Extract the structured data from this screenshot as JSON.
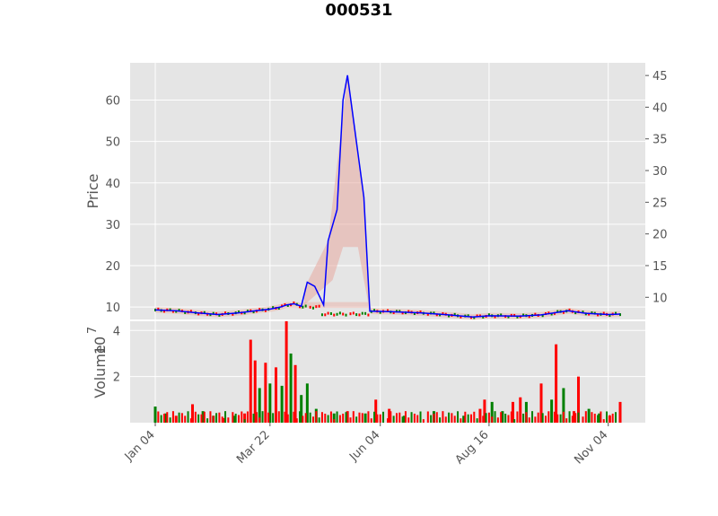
{
  "chart_data": {
    "type": "candlestick_volume",
    "title": "000531",
    "price_panel": {
      "ylabel": "Price",
      "ylim": [
        7,
        69
      ],
      "yticks": [
        10,
        20,
        30,
        40,
        50,
        60
      ],
      "secondary_ylim": [
        6.5,
        47
      ],
      "secondary_yticks": [
        10,
        15,
        20,
        25,
        30,
        35,
        40,
        45
      ],
      "grid": true
    },
    "volume_panel": {
      "ylabel": "Volume",
      "exponent_label": "10",
      "exponent_power": "7",
      "ylim": [
        0,
        4.4
      ],
      "yticks": [
        2,
        4
      ],
      "grid": true
    },
    "x_axis": {
      "start": "2021-01-04",
      "end": "2021-11-12",
      "ticks": [
        {
          "label": "Jan 04",
          "date": "2021-01-04"
        },
        {
          "label": "Mar 22",
          "date": "2021-03-22"
        },
        {
          "label": "Jun 04",
          "date": "2021-06-04"
        },
        {
          "label": "Aug 16",
          "date": "2021-08-16"
        },
        {
          "label": "Nov 04",
          "date": "2021-11-04"
        }
      ]
    },
    "price_series": [
      {
        "date": "2021-01-04",
        "value": 9.3
      },
      {
        "date": "2021-01-18",
        "value": 9.1
      },
      {
        "date": "2021-02-01",
        "value": 8.6
      },
      {
        "date": "2021-02-15",
        "value": 8.2
      },
      {
        "date": "2021-03-01",
        "value": 8.6
      },
      {
        "date": "2021-03-10",
        "value": 9.0
      },
      {
        "date": "2021-03-22",
        "value": 9.5
      },
      {
        "date": "2021-03-29",
        "value": 10.0
      },
      {
        "date": "2021-04-02",
        "value": 10.5
      },
      {
        "date": "2021-04-07",
        "value": 10.8
      },
      {
        "date": "2021-04-12",
        "value": 10.2
      },
      {
        "date": "2021-04-16",
        "value": 16.0
      },
      {
        "date": "2021-04-21",
        "value": 15.0
      },
      {
        "date": "2021-04-27",
        "value": 10.5
      },
      {
        "date": "2021-04-30",
        "value": 26.0
      },
      {
        "date": "2021-05-06",
        "value": 33.5
      },
      {
        "date": "2021-05-10",
        "value": 60.0
      },
      {
        "date": "2021-05-13",
        "value": 66.0
      },
      {
        "date": "2021-05-24",
        "value": 36.5
      },
      {
        "date": "2021-05-28",
        "value": 9.0
      },
      {
        "date": "2021-06-10",
        "value": 8.9
      },
      {
        "date": "2021-07-01",
        "value": 8.6
      },
      {
        "date": "2021-07-20",
        "value": 8.1
      },
      {
        "date": "2021-08-05",
        "value": 7.6
      },
      {
        "date": "2021-08-16",
        "value": 7.9
      },
      {
        "date": "2021-09-06",
        "value": 7.8
      },
      {
        "date": "2021-09-20",
        "value": 8.1
      },
      {
        "date": "2021-10-08",
        "value": 9.1
      },
      {
        "date": "2021-10-20",
        "value": 8.5
      },
      {
        "date": "2021-11-04",
        "value": 8.2
      },
      {
        "date": "2021-11-12",
        "value": 8.3
      }
    ],
    "band_upper": [
      {
        "date": "2021-04-14",
        "value": 14.5
      },
      {
        "date": "2021-04-30",
        "value": 26.0
      },
      {
        "date": "2021-05-13",
        "value": 66.0
      },
      {
        "date": "2021-05-24",
        "value": 36.5
      },
      {
        "date": "2021-05-28",
        "value": 9.0
      }
    ],
    "band_lower": [
      {
        "date": "2021-04-14",
        "value": 10.5
      },
      {
        "date": "2021-05-03",
        "value": 16.5
      },
      {
        "date": "2021-05-10",
        "value": 24.5
      },
      {
        "date": "2021-05-20",
        "value": 24.5
      },
      {
        "date": "2021-05-24",
        "value": 16.5
      },
      {
        "date": "2021-05-28",
        "value": 9.0
      }
    ],
    "volume_bars": [
      {
        "date": "2021-01-04",
        "value": 0.7,
        "color": "green"
      },
      {
        "date": "2021-01-11",
        "value": 0.4,
        "color": "green"
      },
      {
        "date": "2021-01-18",
        "value": 0.3,
        "color": "red"
      },
      {
        "date": "2021-01-29",
        "value": 0.8,
        "color": "red"
      },
      {
        "date": "2021-02-05",
        "value": 0.5,
        "color": "green"
      },
      {
        "date": "2021-02-12",
        "value": 0.3,
        "color": "green"
      },
      {
        "date": "2021-02-19",
        "value": 0.2,
        "color": "red"
      },
      {
        "date": "2021-02-26",
        "value": 0.3,
        "color": "green"
      },
      {
        "date": "2021-03-05",
        "value": 0.4,
        "color": "red"
      },
      {
        "date": "2021-03-09",
        "value": 3.6,
        "color": "red"
      },
      {
        "date": "2021-03-12",
        "value": 2.7,
        "color": "red"
      },
      {
        "date": "2021-03-15",
        "value": 1.5,
        "color": "green"
      },
      {
        "date": "2021-03-19",
        "value": 2.6,
        "color": "red"
      },
      {
        "date": "2021-03-22",
        "value": 1.7,
        "color": "green"
      },
      {
        "date": "2021-03-26",
        "value": 2.4,
        "color": "red"
      },
      {
        "date": "2021-03-30",
        "value": 1.6,
        "color": "green"
      },
      {
        "date": "2021-04-02",
        "value": 4.4,
        "color": "red"
      },
      {
        "date": "2021-04-05",
        "value": 3.0,
        "color": "green"
      },
      {
        "date": "2021-04-08",
        "value": 2.5,
        "color": "red"
      },
      {
        "date": "2021-04-12",
        "value": 1.2,
        "color": "green"
      },
      {
        "date": "2021-04-16",
        "value": 1.7,
        "color": "green"
      },
      {
        "date": "2021-04-22",
        "value": 0.6,
        "color": "green"
      },
      {
        "date": "2021-05-04",
        "value": 0.4,
        "color": "green"
      },
      {
        "date": "2021-05-13",
        "value": 0.5,
        "color": "red"
      },
      {
        "date": "2021-05-25",
        "value": 0.4,
        "color": "green"
      },
      {
        "date": "2021-06-01",
        "value": 1.0,
        "color": "red"
      },
      {
        "date": "2021-06-10",
        "value": 0.6,
        "color": "red"
      },
      {
        "date": "2021-06-20",
        "value": 0.3,
        "color": "green"
      },
      {
        "date": "2021-07-10",
        "value": 0.5,
        "color": "green"
      },
      {
        "date": "2021-07-30",
        "value": 0.3,
        "color": "green"
      },
      {
        "date": "2021-08-10",
        "value": 0.6,
        "color": "red"
      },
      {
        "date": "2021-08-13",
        "value": 1.0,
        "color": "red"
      },
      {
        "date": "2021-08-18",
        "value": 0.9,
        "color": "green"
      },
      {
        "date": "2021-08-25",
        "value": 0.5,
        "color": "green"
      },
      {
        "date": "2021-09-01",
        "value": 0.9,
        "color": "red"
      },
      {
        "date": "2021-09-06",
        "value": 1.1,
        "color": "red"
      },
      {
        "date": "2021-09-10",
        "value": 0.9,
        "color": "green"
      },
      {
        "date": "2021-09-20",
        "value": 1.7,
        "color": "red"
      },
      {
        "date": "2021-09-27",
        "value": 1.0,
        "color": "green"
      },
      {
        "date": "2021-09-30",
        "value": 3.4,
        "color": "red"
      },
      {
        "date": "2021-10-05",
        "value": 1.5,
        "color": "green"
      },
      {
        "date": "2021-10-12",
        "value": 0.5,
        "color": "red"
      },
      {
        "date": "2021-10-15",
        "value": 2.0,
        "color": "red"
      },
      {
        "date": "2021-10-22",
        "value": 0.6,
        "color": "green"
      },
      {
        "date": "2021-10-29",
        "value": 0.4,
        "color": "green"
      },
      {
        "date": "2021-11-05",
        "value": 0.3,
        "color": "red"
      },
      {
        "date": "2021-11-12",
        "value": 0.9,
        "color": "red"
      }
    ],
    "colors": {
      "price_line": "#0000ff",
      "band": "#e8aaa0",
      "up": "#ff0000",
      "down": "#008000",
      "panel_bg": "#e5e5e5",
      "grid": "#ffffff"
    }
  }
}
